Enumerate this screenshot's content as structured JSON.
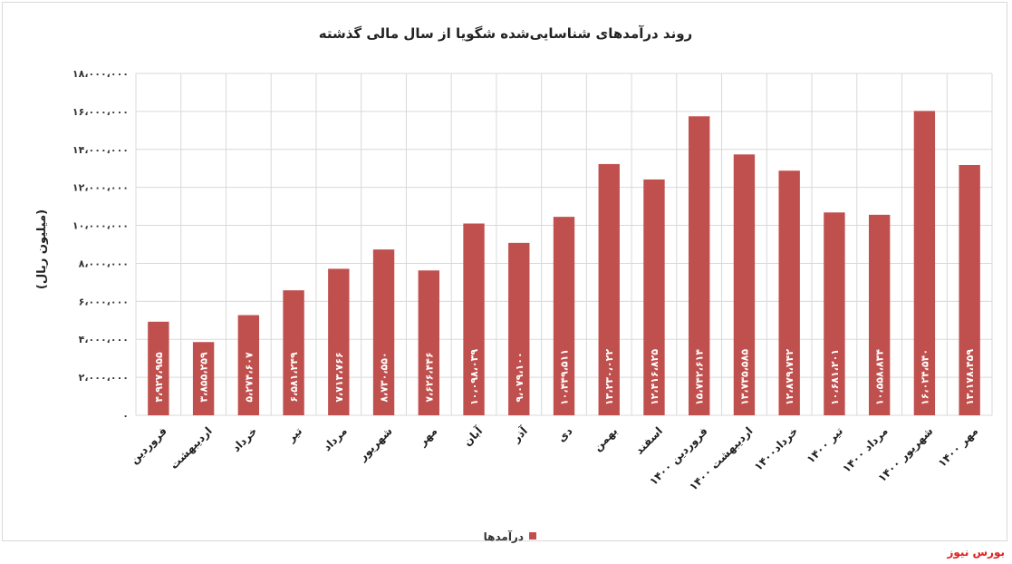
{
  "chart_data": {
    "type": "bar",
    "title": "روند درآمدهای شناسایی‌شده شگویا از سال مالی گذشته",
    "ylabel": "(میلیون ریال)",
    "xlabel": "",
    "ylim": [
      0,
      18000000
    ],
    "yticks": [
      "۰",
      "۲،۰۰۰،۰۰۰",
      "۴،۰۰۰،۰۰۰",
      "۶،۰۰۰،۰۰۰",
      "۸،۰۰۰،۰۰۰",
      "۱۰،۰۰۰،۰۰۰",
      "۱۲،۰۰۰،۰۰۰",
      "۱۴،۰۰۰،۰۰۰",
      "۱۶،۰۰۰،۰۰۰",
      "۱۸،۰۰۰،۰۰۰"
    ],
    "grid": true,
    "legend_position": "bottom",
    "bar_color": "#c0504d",
    "categories": [
      "فروردین",
      "اردیبهشت",
      "خرداد",
      "تیر",
      "مرداد",
      "شهریور",
      "مهر",
      "آبان",
      "آذر",
      "دی",
      "بهمن",
      "اسفند",
      "فروردین ۱۴۰۰",
      "اردیبهشت ۱۴۰۰",
      "خرداد۱۴۰۰",
      "تیر ۱۴۰۰",
      "مرداد ۱۴۰۰",
      "شهریور ۱۴۰۰",
      "مهر ۱۴۰۰"
    ],
    "series": [
      {
        "name": "درآمدها",
        "values": [
          4927955,
          3855259,
          5274607,
          6581249,
          7713766,
          8730550,
          7626446,
          10098039,
          9079100,
          10449511,
          13230022,
          12416825,
          15742614,
          13735585,
          12879742,
          10681201,
          10558834,
          16024540,
          13178459
        ],
        "labels": [
          "۴،۹۲۷،۹۵۵",
          "۳،۸۵۵،۲۵۹",
          "۵،۲۷۴،۶۰۷",
          "۶،۵۸۱،۲۴۹",
          "۷،۷۱۳،۷۶۶",
          "۸،۷۳۰،۵۵۰",
          "۷،۶۲۶،۴۴۶",
          "۱۰،۰۹۸،۰۳۹",
          "۹،۰۷۹،۱۰۰",
          "۱۰،۴۴۹،۵۱۱",
          "۱۳،۲۳۰،۰۲۲",
          "۱۲،۴۱۶،۸۲۵",
          "۱۵،۷۴۲،۶۱۴",
          "۱۳،۷۳۵،۵۸۵",
          "۱۲،۸۷۹،۷۴۲",
          "۱۰،۶۸۱،۲۰۱",
          "۱۰،۵۵۸،۸۳۴",
          "۱۶،۰۲۴،۵۴۰",
          "۱۳،۱۷۸،۴۵۹"
        ]
      }
    ]
  },
  "watermark": "بورس نیوز"
}
